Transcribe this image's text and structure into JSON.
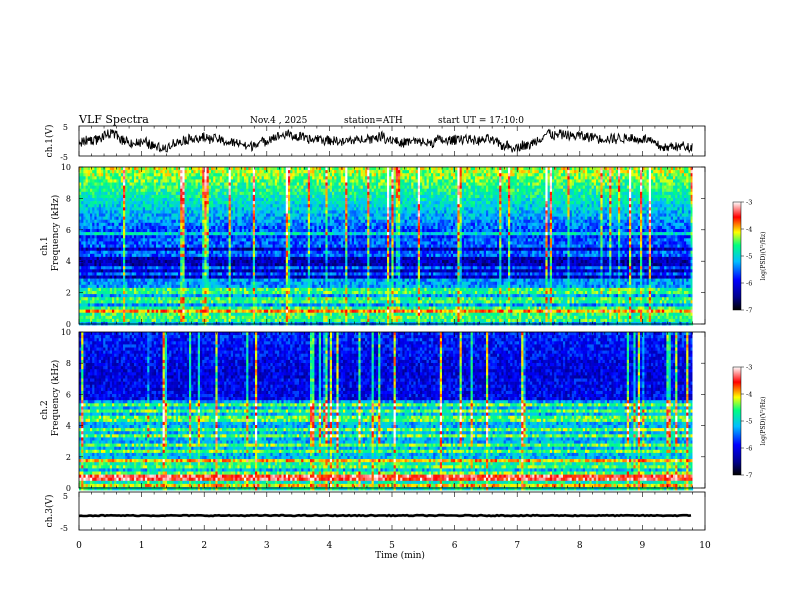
{
  "header": {
    "title": "VLF  Spectra",
    "date": "Nov.4  , 2025",
    "station": "station=ATH",
    "start_ut": "start  UT  =    17:10:0"
  },
  "chart_data": [
    {
      "type": "line",
      "id": "ch1-waveform",
      "ylabel": "ch.1(V)",
      "ylim": [
        -5,
        5
      ],
      "ytick_labels": [
        "5",
        "-5"
      ],
      "xlim": [
        0,
        10
      ],
      "series": [
        {
          "name": "ch.1",
          "description_values": "noisy waveform roughly between -3 and 3 V"
        }
      ]
    },
    {
      "type": "heatmap",
      "id": "ch1-spectrogram",
      "ylabel": "ch.1\nFrequency (kHz)",
      "ylabel_top": "ch.1",
      "ylabel_bottom": "Frequency  (kHz)",
      "ylim": [
        0,
        10
      ],
      "ytick_labels": [
        "0",
        "2",
        "4",
        "6",
        "8",
        "10"
      ],
      "xlim": [
        0,
        10
      ],
      "data_end_min": 9.8,
      "colorbar": {
        "label": "log(PSD)(V²/Hz)",
        "range": [
          -7,
          -3
        ],
        "tick_labels": [
          "-3",
          "-4",
          "-5",
          "-6",
          "-7"
        ]
      },
      "bands_khz": [
        0.3,
        0.5,
        0.8,
        1.0,
        1.4,
        1.7,
        2.1,
        2.3,
        3.2,
        3.6,
        4.5,
        5.0,
        5.3,
        5.8
      ]
    },
    {
      "type": "heatmap",
      "id": "ch2-spectrogram",
      "ylabel_top": "ch.2",
      "ylabel_bottom": "Frequency  (kHz)",
      "ylim": [
        0,
        10
      ],
      "ytick_labels": [
        "0",
        "2",
        "4",
        "6",
        "8",
        "10"
      ],
      "xlim": [
        0,
        10
      ],
      "data_end_min": 9.8,
      "colorbar": {
        "label": "log(PSD)(V²/Hz)",
        "range": [
          -7,
          -3
        ],
        "tick_labels": [
          "-3",
          "-4",
          "-5",
          "-6",
          "-7"
        ]
      },
      "bands_khz": [
        0.3,
        0.8,
        1.0,
        1.5,
        1.9,
        2.4,
        2.9,
        3.4,
        3.8,
        4.4,
        4.6,
        5.0,
        5.5
      ]
    },
    {
      "type": "line",
      "id": "ch3-waveform",
      "ylabel": "ch.3(V)",
      "ylim": [
        -5,
        5
      ],
      "ytick_labels": [
        "5",
        "-5"
      ],
      "xlim": [
        0,
        10
      ],
      "series": [
        {
          "name": "ch.3",
          "constant_value": -1.2
        }
      ]
    }
  ],
  "xaxis": {
    "label": "Time  (min)",
    "tick_labels": [
      "0",
      "1",
      "2",
      "3",
      "4",
      "5",
      "6",
      "7",
      "8",
      "9",
      "10"
    ],
    "range": [
      0,
      10
    ]
  },
  "colors": {
    "colormap": [
      "#000000",
      "#00008b",
      "#0000ff",
      "#00bfff",
      "#00ff80",
      "#ffff00",
      "#ff0000",
      "#ffffff"
    ]
  }
}
